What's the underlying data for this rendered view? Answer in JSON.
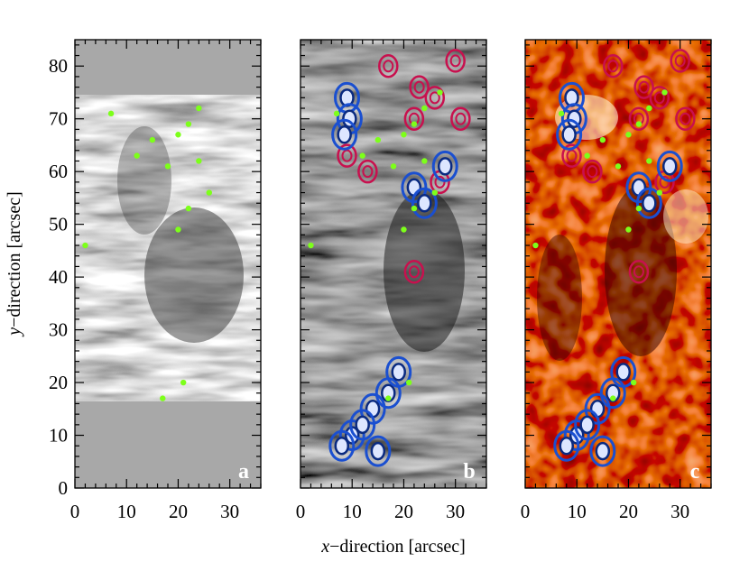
{
  "chart_data": {
    "type": "heatmap",
    "xlabel_prefix": "x",
    "xlabel_suffix": "−direction  [arcsec]",
    "ylabel_prefix": "y",
    "ylabel_suffix": "−direction  [arcsec]",
    "xlim": [
      0,
      36
    ],
    "ylim": [
      0,
      85
    ],
    "xticks": [
      0,
      10,
      20,
      30
    ],
    "yticks": [
      0,
      10,
      20,
      30,
      40,
      50,
      60,
      70,
      80
    ],
    "panels": [
      {
        "label": "a",
        "coverage_y": [
          16.5,
          74.5
        ]
      },
      {
        "label": "b"
      },
      {
        "label": "c"
      }
    ],
    "colors": {
      "contour_blue": "#1a4fd0",
      "contour_magenta": "#c8104e",
      "markers_green": "#7dff1a"
    },
    "blue_contours": [
      {
        "x": 9,
        "y": 74
      },
      {
        "x": 9.5,
        "y": 70
      },
      {
        "x": 8.5,
        "y": 67
      },
      {
        "x": 17,
        "y": 18
      },
      {
        "x": 19,
        "y": 22
      },
      {
        "x": 14,
        "y": 15
      },
      {
        "x": 10,
        "y": 10
      },
      {
        "x": 12,
        "y": 12
      },
      {
        "x": 8,
        "y": 8
      },
      {
        "x": 15,
        "y": 7
      },
      {
        "x": 22,
        "y": 57
      },
      {
        "x": 28,
        "y": 61
      },
      {
        "x": 24,
        "y": 54
      }
    ],
    "magenta_contours": [
      {
        "x": 17,
        "y": 80
      },
      {
        "x": 23,
        "y": 76
      },
      {
        "x": 26,
        "y": 74
      },
      {
        "x": 30,
        "y": 81
      },
      {
        "x": 22,
        "y": 70
      },
      {
        "x": 31,
        "y": 70
      },
      {
        "x": 9,
        "y": 63
      },
      {
        "x": 13,
        "y": 60
      },
      {
        "x": 22,
        "y": 41
      },
      {
        "x": 27,
        "y": 58
      }
    ],
    "green_markers": [
      {
        "x": 7,
        "y": 71
      },
      {
        "x": 12,
        "y": 63
      },
      {
        "x": 15,
        "y": 66
      },
      {
        "x": 20,
        "y": 67
      },
      {
        "x": 22,
        "y": 69
      },
      {
        "x": 18,
        "y": 61
      },
      {
        "x": 24,
        "y": 62
      },
      {
        "x": 27,
        "y": 75
      },
      {
        "x": 22,
        "y": 53
      },
      {
        "x": 20,
        "y": 49
      },
      {
        "x": 2,
        "y": 46
      },
      {
        "x": 17,
        "y": 17
      },
      {
        "x": 21,
        "y": 20
      },
      {
        "x": 26,
        "y": 56
      },
      {
        "x": 24,
        "y": 72
      }
    ]
  }
}
